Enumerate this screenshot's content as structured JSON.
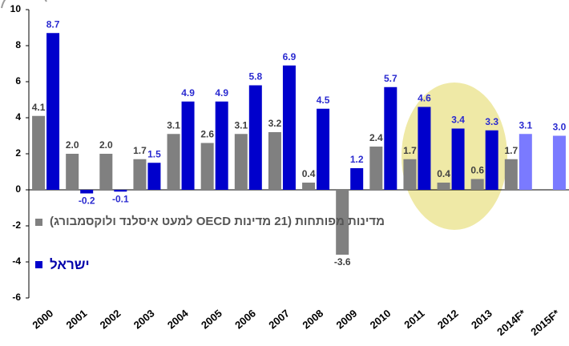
{
  "chart_data": {
    "type": "bar",
    "categories": [
      "2000",
      "2001",
      "2002",
      "2003",
      "2004",
      "2005",
      "2006",
      "2007",
      "2008",
      "2009",
      "2010",
      "2011",
      "2012",
      "2013",
      "2014F*",
      "2015F*"
    ],
    "series": [
      {
        "name": "מדינות מפותחות (21 מדינות OECD למעט איסלנד ולוקסמבורג)",
        "color": "#808080",
        "values": [
          4.1,
          2.0,
          2.0,
          1.7,
          3.1,
          2.6,
          3.1,
          3.2,
          0.4,
          -3.6,
          2.4,
          1.7,
          0.4,
          0.6,
          1.7,
          null
        ],
        "value_labels": [
          "4.1",
          "2.0",
          "2.0",
          "1.7",
          "3.1",
          "2.6",
          "3.1",
          "3.2",
          "0.4",
          "-3.6",
          "2.4",
          "1.7",
          "0.4",
          "0.6",
          "1.7",
          null
        ]
      },
      {
        "name": "ישראל",
        "color": "#0000cc",
        "colors": [
          "#0000cc",
          "#0000cc",
          "#0000cc",
          "#0000cc",
          "#0000cc",
          "#0000cc",
          "#0000cc",
          "#0000cc",
          "#0000cc",
          "#0000cc",
          "#0000cc",
          "#0000cc",
          "#0000cc",
          "#0000cc",
          "#7a7aff",
          "#7a7aff"
        ],
        "values": [
          8.7,
          -0.2,
          -0.1,
          1.5,
          4.9,
          4.9,
          5.8,
          6.9,
          4.5,
          1.2,
          5.7,
          4.6,
          3.4,
          3.3,
          3.1,
          3.0
        ],
        "value_labels": [
          "8.7",
          "-0.2",
          "-0.1",
          "1.5",
          "4.9",
          "4.9",
          "5.8",
          "6.9",
          "4.5",
          "1.2",
          "5.7",
          "4.6",
          "3.4",
          "3.3",
          "3.1",
          "3.0"
        ]
      }
    ],
    "ylim": [
      -6,
      10
    ],
    "yticks": [
      -6,
      -4,
      -2,
      0,
      2,
      4,
      6,
      8,
      10
    ],
    "grid": false
  }
}
